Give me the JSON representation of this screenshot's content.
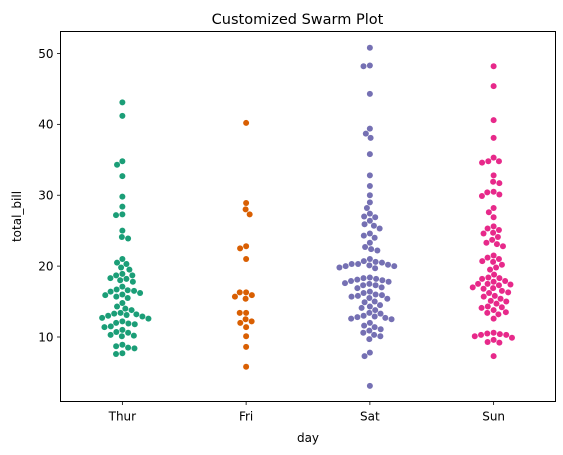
{
  "chart_data": {
    "type": "scatter",
    "subtype": "swarm",
    "title": "Customized Swarm Plot",
    "xlabel": "day",
    "ylabel": "total_bill",
    "categories": [
      "Thur",
      "Fri",
      "Sat",
      "Sun"
    ],
    "ylim": [
      0.9,
      53.1
    ],
    "yticks": [
      10,
      20,
      30,
      40,
      50
    ],
    "grid": false,
    "legend": "none",
    "palette": [
      "#1b9e77",
      "#d95f02",
      "#7570b3",
      "#e7298a"
    ],
    "series": [
      {
        "category": "Thur",
        "values": [
          43.1,
          41.2,
          34.8,
          34.3,
          32.7,
          29.8,
          28.4,
          27.3,
          27.2,
          25.0,
          24.1,
          23.9,
          21.0,
          20.5,
          20.3,
          19.8,
          19.5,
          18.9,
          18.7,
          18.7,
          18.3,
          18.2,
          18.0,
          17.8,
          17.1,
          16.7,
          16.6,
          16.5,
          16.4,
          16.2,
          16.0,
          15.9,
          15.7,
          15.5,
          14.8,
          14.3,
          14.0,
          13.8,
          13.4,
          13.3,
          13.2,
          13.1,
          13.0,
          12.9,
          12.7,
          12.6,
          12.2,
          12.0,
          11.9,
          11.8,
          11.5,
          11.4,
          11.0,
          10.7,
          10.6,
          10.3,
          10.2,
          10.1,
          8.9,
          8.7,
          8.5,
          8.4,
          7.7,
          7.6
        ]
      },
      {
        "category": "Fri",
        "values": [
          40.2,
          28.9,
          28.0,
          27.3,
          22.8,
          22.5,
          21.0,
          16.3,
          16.3,
          15.9,
          15.7,
          15.4,
          13.4,
          13.4,
          12.5,
          12.2,
          12.0,
          11.4,
          10.1,
          8.6,
          5.8
        ]
      },
      {
        "category": "Sat",
        "values": [
          50.8,
          48.3,
          48.2,
          44.3,
          39.4,
          38.7,
          38.1,
          35.8,
          32.8,
          31.3,
          30.0,
          29.0,
          28.2,
          27.4,
          27.0,
          26.9,
          26.4,
          25.9,
          25.7,
          25.3,
          24.6,
          24.3,
          24.0,
          23.3,
          22.7,
          22.4,
          22.2,
          21.0,
          20.7,
          20.6,
          20.5,
          20.3,
          20.3,
          20.2,
          20.1,
          20.0,
          20.0,
          19.8,
          19.7,
          18.4,
          18.3,
          18.2,
          18.1,
          18.0,
          17.9,
          17.8,
          17.6,
          17.5,
          17.3,
          17.3,
          17.0,
          16.9,
          16.4,
          16.2,
          16.0,
          15.9,
          15.8,
          15.7,
          15.5,
          15.4,
          15.0,
          14.9,
          14.5,
          14.3,
          14.1,
          13.8,
          13.4,
          13.3,
          13.0,
          12.9,
          12.8,
          12.7,
          12.6,
          12.5,
          12.0,
          11.6,
          11.4,
          11.1,
          10.9,
          10.6,
          10.3,
          10.1,
          9.7,
          7.8,
          7.3,
          3.1
        ]
      },
      {
        "category": "Sun",
        "values": [
          48.2,
          45.4,
          40.6,
          38.1,
          35.3,
          34.8,
          34.8,
          34.6,
          32.8,
          31.9,
          31.7,
          30.5,
          30.4,
          30.1,
          29.9,
          28.2,
          27.6,
          26.9,
          25.6,
          25.3,
          25.1,
          24.7,
          24.6,
          24.1,
          23.7,
          23.3,
          23.1,
          22.8,
          21.5,
          21.2,
          21.0,
          20.7,
          20.6,
          20.2,
          19.8,
          19.5,
          18.8,
          18.4,
          18.3,
          18.2,
          17.9,
          17.8,
          17.5,
          17.5,
          17.4,
          17.3,
          17.0,
          16.9,
          16.8,
          16.5,
          16.3,
          16.2,
          15.8,
          15.7,
          15.4,
          15.1,
          15.0,
          14.7,
          14.3,
          14.2,
          14.1,
          13.8,
          13.5,
          13.4,
          13.2,
          12.6,
          10.6,
          10.5,
          10.4,
          10.3,
          10.3,
          10.1,
          9.9,
          9.6,
          9.3,
          9.2,
          7.3
        ]
      }
    ]
  }
}
